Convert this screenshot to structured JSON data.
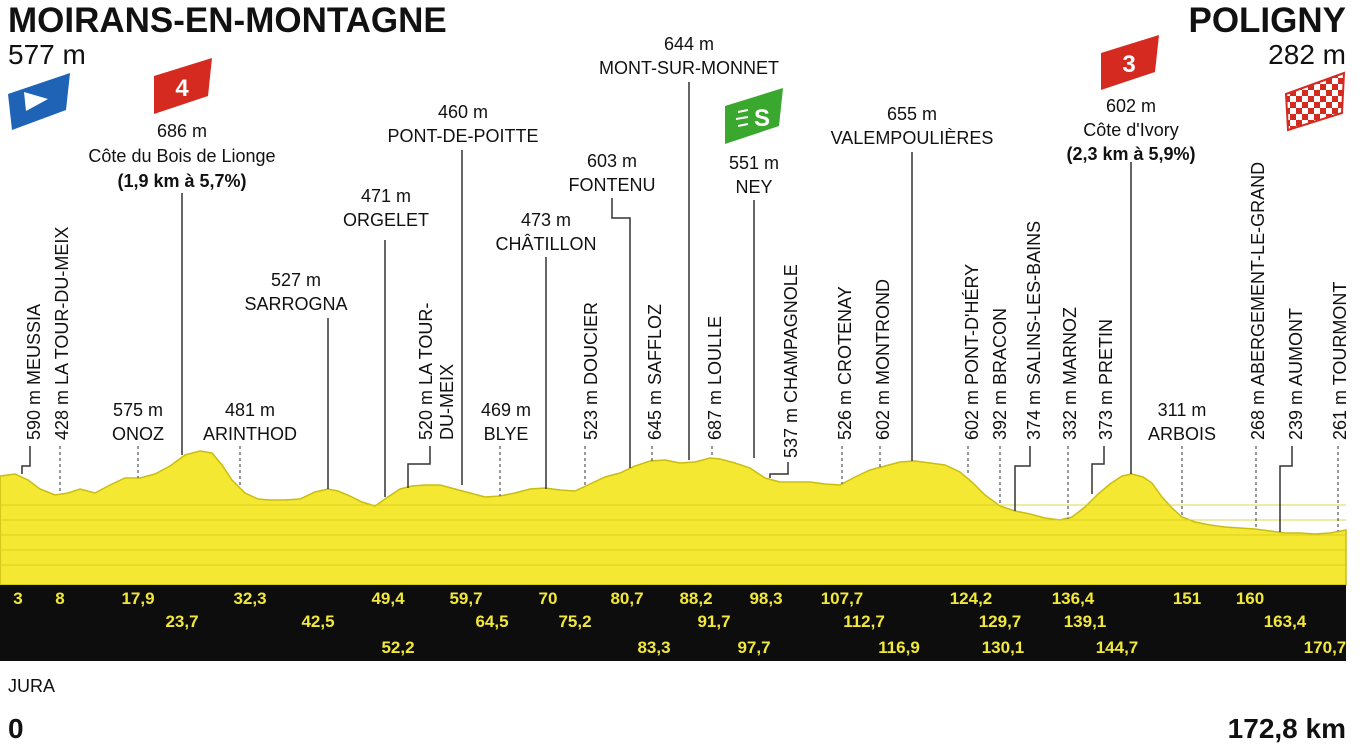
{
  "start": {
    "name": "MOIRANS-EN-MONTAGNE",
    "altitude": "577 m"
  },
  "finish": {
    "name": "POLIGNY",
    "altitude": "282 m"
  },
  "region": "JURA",
  "axis": {
    "start_label": "0",
    "end_label": "172,8 km"
  },
  "colors": {
    "profile": "#f4e832",
    "band": "#0d0d0d",
    "km_text": "#f2e83a",
    "climb_badge": "#d42a20",
    "sprint_badge": "#3aa72e",
    "start_flag": "#1f63b6"
  },
  "climbs": [
    {
      "category": "4",
      "altitude": "686 m",
      "name": "Côte du Bois de Lionge",
      "detail": "(1,9 km à 5,7%)"
    },
    {
      "category": "3",
      "altitude": "602 m",
      "name": "Côte d'Ivory",
      "detail": "(2,3 km à 5,9%)"
    }
  ],
  "sprint": {
    "badge": "S",
    "altitude": "551 m",
    "name": "NEY"
  },
  "horizontal_labels": [
    {
      "altitude": "575 m",
      "name": "ONOZ"
    },
    {
      "altitude": "481 m",
      "name": "ARINTHOD"
    },
    {
      "altitude": "527 m",
      "name": "SARROGNA"
    },
    {
      "altitude": "471 m",
      "name": "ORGELET"
    },
    {
      "altitude": "460 m",
      "name": "PONT-DE-POITTE"
    },
    {
      "altitude": "469 m",
      "name": "BLYE"
    },
    {
      "altitude": "473 m",
      "name": "CHÂTILLON"
    },
    {
      "altitude": "603 m",
      "name": "FONTENU"
    },
    {
      "altitude": "644 m",
      "name": "MONT-SUR-MONNET"
    },
    {
      "altitude": "655 m",
      "name": "VALEMPOULIÈRES"
    },
    {
      "altitude": "311 m",
      "name": "ARBOIS"
    }
  ],
  "vertical_labels": [
    "590 m MEUSSIA",
    "428 m LA TOUR-DU-MEIX",
    "520 m LA TOUR-",
    "DU-MEIX",
    "523 m DOUCIER",
    "645 m SAFFLOZ",
    "687 m LOULLE",
    "537 m CHAMPAGNOLE",
    "526 m CROTENAY",
    "602 m MONTROND",
    "602 m PONT-D'HÉRY",
    "392 m BRACON",
    "374 m SALINS-LES-BAINS",
    "332 m MARNOZ",
    "373 m PRETIN",
    "268 m ABERGEMENT-LE-GRAND",
    "239 m AUMONT",
    "261 m TOURMONT"
  ],
  "km_markers": [
    "3",
    "8",
    "17,9",
    "23,7",
    "32,3",
    "42,5",
    "49,4",
    "52,2",
    "59,7",
    "64,5",
    "70",
    "75,2",
    "80,7",
    "83,3",
    "88,2",
    "91,7",
    "97,7",
    "98,3",
    "107,7",
    "112,7",
    "116,9",
    "124,2",
    "129,7",
    "130,1",
    "136,4",
    "139,1",
    "144,7",
    "151",
    "160",
    "163,4",
    "170,7"
  ]
}
